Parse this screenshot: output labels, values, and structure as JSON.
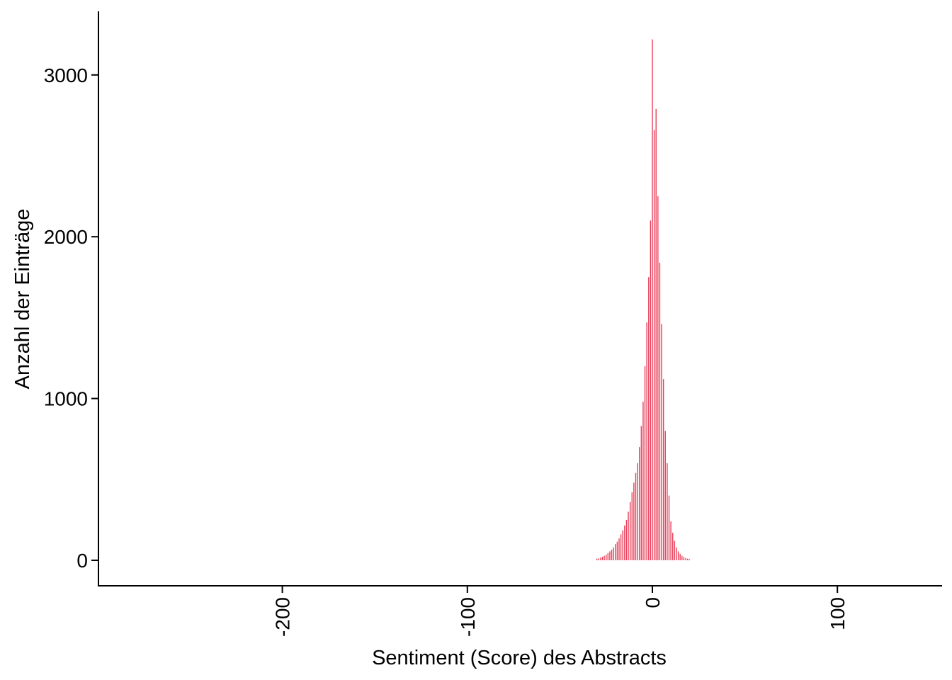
{
  "chart_data": {
    "type": "bar",
    "title": "",
    "xlabel": "Sentiment (Score) des Abstracts",
    "ylabel": "Anzahl der Einträge",
    "xlim": [
      -280,
      155
    ],
    "ylim": [
      -155,
      3410
    ],
    "grid": false,
    "legend": "none",
    "bar_color": "#e8405a",
    "x_ticks": [
      {
        "value": -200,
        "label": "-200"
      },
      {
        "value": -100,
        "label": "-100"
      },
      {
        "value": 0,
        "label": "0"
      },
      {
        "value": 100,
        "label": "100"
      }
    ],
    "y_ticks": [
      {
        "value": 0,
        "label": "0"
      },
      {
        "value": 1000,
        "label": "1000"
      },
      {
        "value": 2000,
        "label": "2000"
      },
      {
        "value": 3000,
        "label": "3000"
      }
    ],
    "x": [
      -30,
      -29,
      -28,
      -27,
      -26,
      -25,
      -24,
      -23,
      -22,
      -21,
      -20,
      -19,
      -18,
      -17,
      -16,
      -15,
      -14,
      -13,
      -12,
      -11,
      -10,
      -9,
      -8,
      -7,
      -6,
      -5,
      -4,
      -3,
      -2,
      -1,
      0,
      1,
      2,
      3,
      4,
      5,
      6,
      7,
      8,
      9,
      10,
      11,
      12,
      13,
      14,
      15,
      16,
      17,
      18,
      19,
      20
    ],
    "values": [
      10,
      12,
      16,
      22,
      28,
      35,
      45,
      55,
      65,
      80,
      100,
      115,
      135,
      160,
      185,
      215,
      250,
      300,
      360,
      420,
      480,
      540,
      600,
      700,
      830,
      980,
      1200,
      1470,
      1750,
      2100,
      3220,
      2660,
      2790,
      2250,
      1840,
      1460,
      1120,
      800,
      600,
      400,
      240,
      170,
      120,
      80,
      55,
      40,
      28,
      20,
      14,
      10,
      7
    ]
  }
}
